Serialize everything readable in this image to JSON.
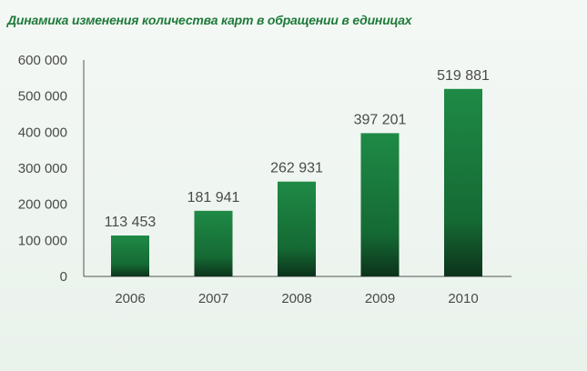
{
  "chart_data": {
    "type": "bar",
    "title": "Динамика изменения количества карт в обращении в единицах",
    "categories": [
      "2006",
      "2007",
      "2008",
      "2009",
      "2010"
    ],
    "values": [
      113453,
      181941,
      262931,
      397201,
      519881
    ],
    "value_labels": [
      "113 453",
      "181 941",
      "262 931",
      "397 201",
      "519 881"
    ],
    "ylim": [
      0,
      600000
    ],
    "yticks": [
      0,
      100000,
      200000,
      300000,
      400000,
      500000,
      600000
    ],
    "ytick_labels": [
      "0",
      "100 000",
      "200 000",
      "300 000",
      "400 000",
      "500 000",
      "600 000"
    ],
    "grid": false,
    "colors": {
      "bar_top": "#1f8a46",
      "bar_bottom": "#0d3a1f",
      "axis": "#555555",
      "title": "#1e7a3a"
    }
  }
}
